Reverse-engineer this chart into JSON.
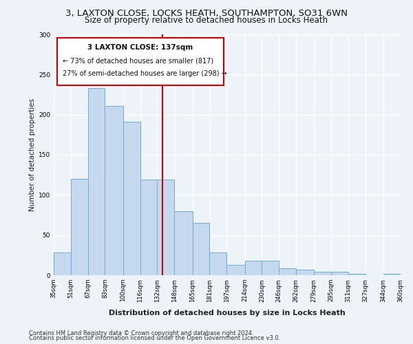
{
  "title_line1": "3, LAXTON CLOSE, LOCKS HEATH, SOUTHAMPTON, SO31 6WN",
  "title_line2": "Size of property relative to detached houses in Locks Heath",
  "xlabel": "Distribution of detached houses by size in Locks Heath",
  "ylabel": "Number of detached properties",
  "footnote1": "Contains HM Land Registry data © Crown copyright and database right 2024.",
  "footnote2": "Contains public sector information licensed under the Open Government Licence v3.0.",
  "annotation_line1": "3 LAXTON CLOSE: 137sqm",
  "annotation_line2": "← 73% of detached houses are smaller (817)",
  "annotation_line3": "27% of semi-detached houses are larger (298) →",
  "marker_value": 137,
  "bin_edges": [
    35,
    51,
    67,
    83,
    100,
    116,
    132,
    148,
    165,
    181,
    197,
    214,
    230,
    246,
    262,
    279,
    295,
    311,
    327,
    344,
    360
  ],
  "bin_labels": [
    "35sqm",
    "51sqm",
    "67sqm",
    "83sqm",
    "100sqm",
    "116sqm",
    "132sqm",
    "148sqm",
    "165sqm",
    "181sqm",
    "197sqm",
    "214sqm",
    "230sqm",
    "246sqm",
    "262sqm",
    "279sqm",
    "295sqm",
    "311sqm",
    "327sqm",
    "344sqm",
    "360sqm"
  ],
  "bar_heights": [
    28,
    120,
    233,
    211,
    191,
    119,
    119,
    80,
    65,
    28,
    13,
    18,
    18,
    9,
    7,
    4,
    4,
    2,
    0,
    2
  ],
  "bar_color": "#c5d8ed",
  "bar_edge_color": "#6badd6",
  "vline_color": "#cc0000",
  "background_color": "#eef2f9",
  "grid_color": "#ffffff",
  "ylim": [
    0,
    300
  ],
  "yticks": [
    0,
    50,
    100,
    150,
    200,
    250,
    300
  ]
}
